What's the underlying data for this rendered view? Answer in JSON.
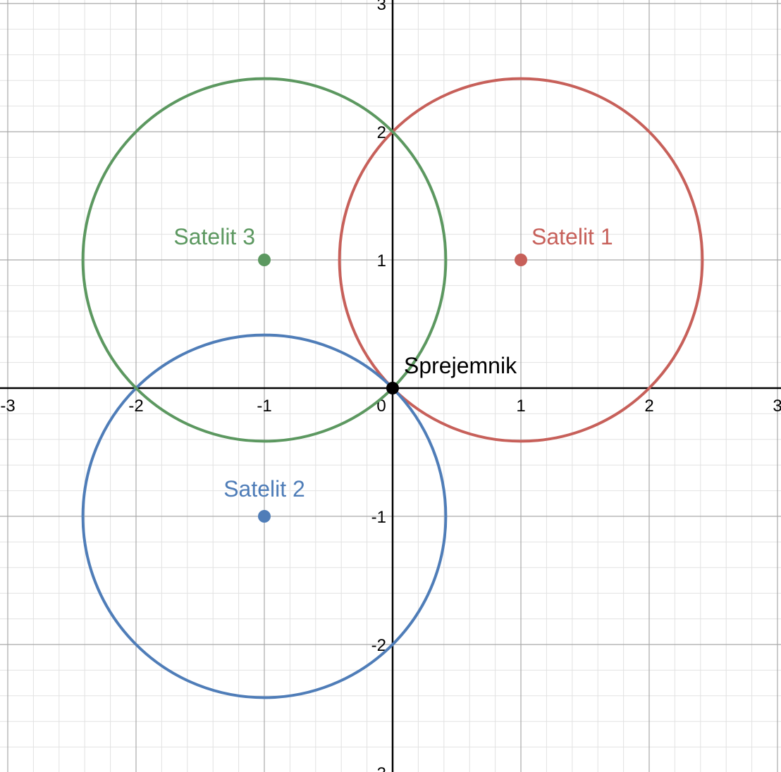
{
  "chart_data": {
    "type": "scatter",
    "xlim": [
      -3,
      3
    ],
    "ylim": [
      -3,
      3
    ],
    "grid": true,
    "minor_grid_step": 0.2,
    "x_ticks": [
      "-3",
      "-2",
      "-1",
      "0",
      "1",
      "2",
      "3"
    ],
    "y_ticks": [
      "3",
      "2",
      "1",
      "-1",
      "-2",
      "-3"
    ],
    "circles": [
      {
        "name": "Satelit 1",
        "center": [
          1,
          1
        ],
        "radius": 1.4142,
        "color": "#c7605a"
      },
      {
        "name": "Satelit 2",
        "center": [
          -1,
          -1
        ],
        "radius": 1.4142,
        "color": "#4f7db8"
      },
      {
        "name": "Satelit 3",
        "center": [
          -1,
          1
        ],
        "radius": 1.4142,
        "color": "#5c9860"
      }
    ],
    "points": [
      {
        "label": "Satelit 1",
        "x": 1,
        "y": 1,
        "color": "#c7605a"
      },
      {
        "label": "Satelit 2",
        "x": -1,
        "y": -1,
        "color": "#4f7db8"
      },
      {
        "label": "Satelit 3",
        "x": -1,
        "y": 1,
        "color": "#5c9860"
      },
      {
        "label": "Sprejemnik",
        "x": 0,
        "y": 0,
        "color": "#000000"
      }
    ]
  }
}
